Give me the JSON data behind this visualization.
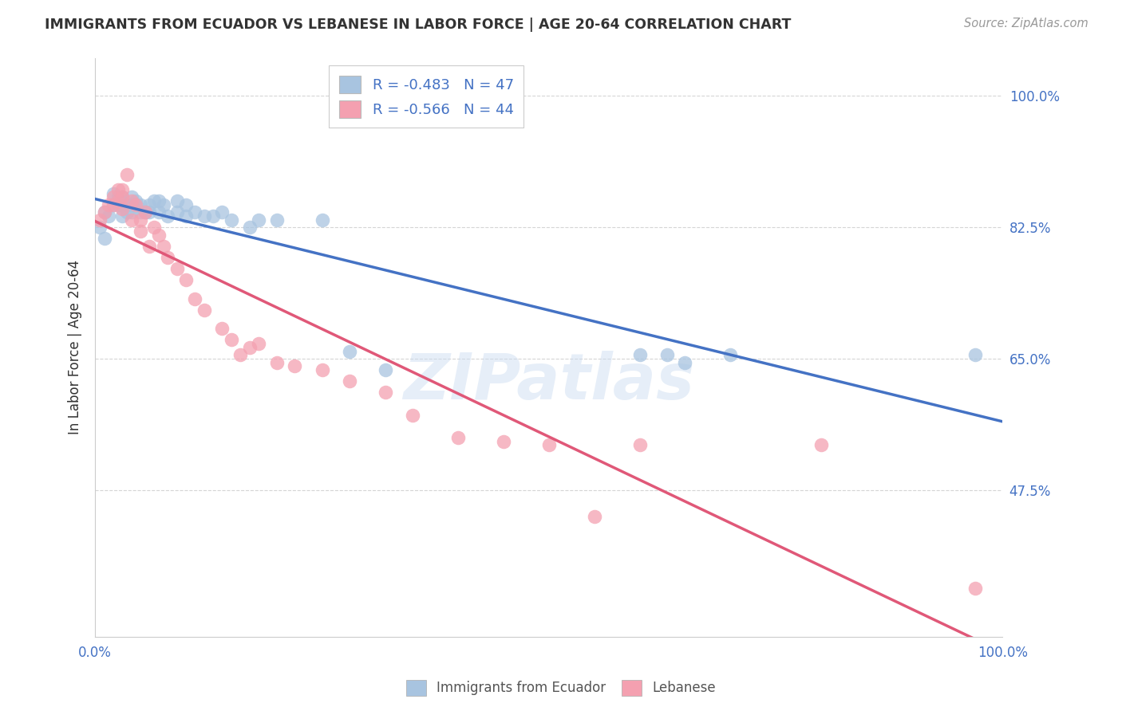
{
  "title": "IMMIGRANTS FROM ECUADOR VS LEBANESE IN LABOR FORCE | AGE 20-64 CORRELATION CHART",
  "source": "Source: ZipAtlas.com",
  "ylabel": "In Labor Force | Age 20-64",
  "xlim": [
    0.0,
    1.0
  ],
  "ylim": [
    0.28,
    1.05
  ],
  "yticks": [
    0.475,
    0.65,
    0.825,
    1.0
  ],
  "ytick_labels": [
    "47.5%",
    "65.0%",
    "82.5%",
    "100.0%"
  ],
  "ecuador_R": "-0.483",
  "ecuador_N": "47",
  "lebanese_R": "-0.566",
  "lebanese_N": "44",
  "ecuador_color": "#a8c4e0",
  "lebanese_color": "#f4a0b0",
  "ecuador_line_color": "#4472c4",
  "lebanese_line_color": "#e05878",
  "ecuador_x": [
    0.005,
    0.01,
    0.01,
    0.015,
    0.02,
    0.02,
    0.025,
    0.025,
    0.03,
    0.03,
    0.03,
    0.035,
    0.035,
    0.04,
    0.04,
    0.04,
    0.045,
    0.05,
    0.05,
    0.055,
    0.06,
    0.06,
    0.065,
    0.07,
    0.07,
    0.075,
    0.08,
    0.09,
    0.09,
    0.1,
    0.1,
    0.11,
    0.12,
    0.13,
    0.14,
    0.15,
    0.17,
    0.18,
    0.2,
    0.25,
    0.28,
    0.32,
    0.6,
    0.63,
    0.65,
    0.7,
    0.97
  ],
  "ecuador_y": [
    0.825,
    0.81,
    0.845,
    0.84,
    0.855,
    0.87,
    0.855,
    0.865,
    0.84,
    0.855,
    0.865,
    0.845,
    0.855,
    0.845,
    0.855,
    0.865,
    0.86,
    0.845,
    0.855,
    0.845,
    0.845,
    0.855,
    0.86,
    0.845,
    0.86,
    0.855,
    0.84,
    0.845,
    0.86,
    0.84,
    0.855,
    0.845,
    0.84,
    0.84,
    0.845,
    0.835,
    0.825,
    0.835,
    0.835,
    0.835,
    0.66,
    0.635,
    0.655,
    0.655,
    0.645,
    0.655,
    0.655
  ],
  "lebanese_x": [
    0.005,
    0.01,
    0.015,
    0.02,
    0.02,
    0.025,
    0.025,
    0.03,
    0.03,
    0.03,
    0.035,
    0.04,
    0.04,
    0.045,
    0.05,
    0.05,
    0.055,
    0.06,
    0.065,
    0.07,
    0.075,
    0.08,
    0.09,
    0.1,
    0.11,
    0.12,
    0.14,
    0.15,
    0.16,
    0.17,
    0.18,
    0.2,
    0.22,
    0.25,
    0.28,
    0.32,
    0.35,
    0.4,
    0.45,
    0.5,
    0.55,
    0.6,
    0.8,
    0.97
  ],
  "lebanese_y": [
    0.835,
    0.845,
    0.855,
    0.855,
    0.865,
    0.86,
    0.875,
    0.85,
    0.865,
    0.875,
    0.895,
    0.835,
    0.86,
    0.855,
    0.82,
    0.835,
    0.845,
    0.8,
    0.825,
    0.815,
    0.8,
    0.785,
    0.77,
    0.755,
    0.73,
    0.715,
    0.69,
    0.675,
    0.655,
    0.665,
    0.67,
    0.645,
    0.64,
    0.635,
    0.62,
    0.605,
    0.575,
    0.545,
    0.54,
    0.535,
    0.44,
    0.535,
    0.535,
    0.345
  ],
  "watermark": "ZIPatlas",
  "background_color": "#ffffff",
  "grid_color": "#d5d5d5",
  "title_color": "#333333",
  "tick_color": "#4472c4",
  "source_color": "#999999"
}
